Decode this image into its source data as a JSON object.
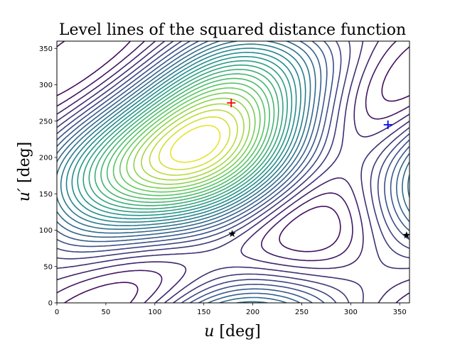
{
  "chart_data": {
    "type": "contour",
    "title": "Level lines of the squared distance function",
    "xlabel_var": "u",
    "ylabel_var": "u′",
    "label_unit": " [deg]",
    "xlim": [
      0,
      360
    ],
    "ylim": [
      0,
      360
    ],
    "xticks": [
      "0",
      "50",
      "100",
      "150",
      "200",
      "250",
      "300",
      "350"
    ],
    "yticks": [
      "0",
      "50",
      "100",
      "150",
      "200",
      "250",
      "300",
      "350"
    ],
    "grid": false,
    "colormap": [
      "#440154",
      "#3b528b",
      "#21918c",
      "#5ec962",
      "#fde725"
    ],
    "colormap_name": "viridis",
    "markers": [
      {
        "name": "maximum",
        "symbol": "plus",
        "color": "#ff0000",
        "x": 178,
        "y": 275
      },
      {
        "name": "minimum",
        "symbol": "plus",
        "color": "#0000ff",
        "x": 338,
        "y": 245
      },
      {
        "name": "saddle-1",
        "symbol": "star",
        "color": "#000000",
        "x": 179,
        "y": 95
      },
      {
        "name": "saddle-2",
        "symbol": "star",
        "color": "#000000",
        "x": 357,
        "y": 93
      }
    ]
  }
}
